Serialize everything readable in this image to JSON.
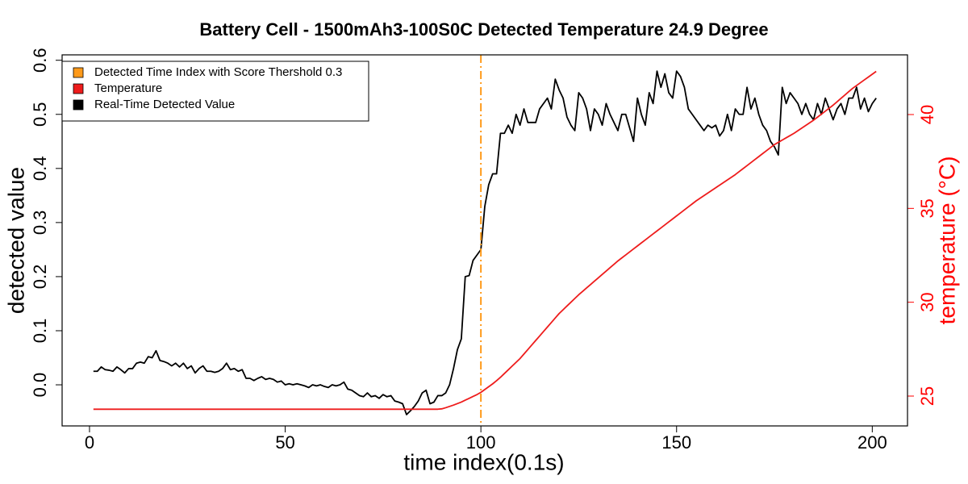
{
  "chart_data": {
    "type": "line",
    "title": "Battery Cell - 1500mAh3-100S0C Detected Temperature 24.9 Degree",
    "x_label": "time index(0.1s)",
    "y_label": "detected value",
    "y2_label": "temperature (°C)",
    "xlim": [
      -7,
      209
    ],
    "xticks": [
      0,
      50,
      100,
      150,
      200
    ],
    "ylim": [
      -0.076,
      0.61
    ],
    "yticks": [
      {
        "value": 0,
        "label": "0.0"
      },
      0.1,
      0.2,
      0.3,
      0.4,
      0.5,
      0.6
    ],
    "y2lim": [
      23.41,
      43.18
    ],
    "y2ticks": [
      25,
      30,
      35,
      40
    ],
    "y2_color": "#ff0000",
    "vline": {
      "name": "Detected Time Index with Score Thershold 0.3",
      "x": 100,
      "color": "#ff9a1a"
    },
    "legend": "top-left",
    "x": [
      1,
      2,
      3,
      4,
      5,
      6,
      7,
      8,
      9,
      10,
      11,
      12,
      13,
      14,
      15,
      16,
      17,
      18,
      19,
      20,
      21,
      22,
      23,
      24,
      25,
      26,
      27,
      28,
      29,
      30,
      31,
      32,
      33,
      34,
      35,
      36,
      37,
      38,
      39,
      40,
      41,
      42,
      43,
      44,
      45,
      46,
      47,
      48,
      49,
      50,
      51,
      52,
      53,
      54,
      55,
      56,
      57,
      58,
      59,
      60,
      61,
      62,
      63,
      64,
      65,
      66,
      67,
      68,
      69,
      70,
      71,
      72,
      73,
      74,
      75,
      76,
      77,
      78,
      79,
      80,
      81,
      82,
      83,
      84,
      85,
      86,
      87,
      88,
      89,
      90,
      91,
      92,
      93,
      94,
      95,
      96,
      97,
      98,
      99,
      100,
      101,
      102,
      103,
      104,
      105,
      106,
      107,
      108,
      109,
      110,
      111,
      112,
      113,
      114,
      115,
      116,
      117,
      118,
      119,
      120,
      121,
      122,
      123,
      124,
      125,
      126,
      127,
      128,
      129,
      130,
      131,
      132,
      133,
      134,
      135,
      136,
      137,
      138,
      139,
      140,
      141,
      142,
      143,
      144,
      145,
      146,
      147,
      148,
      149,
      150,
      151,
      152,
      153,
      154,
      155,
      156,
      157,
      158,
      159,
      160,
      161,
      162,
      163,
      164,
      165,
      166,
      167,
      168,
      169,
      170,
      171,
      172,
      173,
      174,
      175,
      176,
      177,
      178,
      179,
      180,
      181,
      182,
      183,
      184,
      185,
      186,
      187,
      188,
      189,
      190,
      191,
      192,
      193,
      194,
      195,
      196,
      197,
      198,
      199,
      200,
      201
    ],
    "series": [
      {
        "name": "Temperature",
        "color": "#ee1c1c",
        "axis": "y2",
        "values": [
          24.3,
          24.3,
          24.3,
          24.3,
          24.3,
          24.3,
          24.3,
          24.3,
          24.3,
          24.3,
          24.3,
          24.3,
          24.3,
          24.3,
          24.3,
          24.3,
          24.3,
          24.3,
          24.3,
          24.3,
          24.3,
          24.3,
          24.3,
          24.3,
          24.3,
          24.3,
          24.3,
          24.3,
          24.3,
          24.3,
          24.3,
          24.3,
          24.3,
          24.3,
          24.3,
          24.3,
          24.3,
          24.3,
          24.3,
          24.3,
          24.3,
          24.3,
          24.3,
          24.3,
          24.3,
          24.3,
          24.3,
          24.3,
          24.3,
          24.3,
          24.3,
          24.3,
          24.3,
          24.3,
          24.3,
          24.3,
          24.3,
          24.3,
          24.3,
          24.3,
          24.3,
          24.3,
          24.3,
          24.3,
          24.3,
          24.3,
          24.3,
          24.3,
          24.3,
          24.3,
          24.3,
          24.3,
          24.3,
          24.3,
          24.3,
          24.3,
          24.3,
          24.3,
          24.3,
          24.3,
          24.3,
          24.3,
          24.3,
          24.3,
          24.3,
          24.3,
          24.3,
          24.3,
          24.3,
          24.32,
          24.38,
          24.45,
          24.52,
          24.6,
          24.68,
          24.78,
          24.88,
          24.98,
          25.08,
          25.2,
          25.35,
          25.5,
          25.65,
          25.82,
          26.0,
          26.2,
          26.4,
          26.6,
          26.8,
          27.0,
          27.24,
          27.48,
          27.72,
          27.96,
          28.2,
          28.44,
          28.68,
          28.92,
          29.16,
          29.4,
          29.6,
          29.8,
          30.0,
          30.2,
          30.4,
          30.58,
          30.76,
          30.94,
          31.12,
          31.3,
          31.48,
          31.66,
          31.84,
          32.02,
          32.2,
          32.36,
          32.52,
          32.68,
          32.84,
          33.0,
          33.16,
          33.32,
          33.48,
          33.64,
          33.8,
          33.96,
          34.12,
          34.28,
          34.44,
          34.6,
          34.76,
          34.92,
          35.08,
          35.24,
          35.4,
          35.54,
          35.68,
          35.82,
          35.96,
          36.1,
          36.24,
          36.38,
          36.52,
          36.66,
          36.8,
          36.96,
          37.12,
          37.28,
          37.44,
          37.6,
          37.76,
          37.92,
          38.08,
          38.24,
          38.4,
          38.52,
          38.64,
          38.76,
          38.88,
          39.0,
          39.14,
          39.28,
          39.42,
          39.56,
          39.7,
          39.86,
          40.02,
          40.18,
          40.34,
          40.5,
          40.68,
          40.86,
          41.04,
          41.22,
          41.4,
          41.55,
          41.7,
          41.85,
          42.0,
          42.15,
          42.3
        ]
      },
      {
        "name": "Real-Time Detected Value",
        "color": "#000000",
        "values": [
          0.025,
          0.025,
          0.033,
          0.028,
          0.027,
          0.025,
          0.033,
          0.028,
          0.022,
          0.03,
          0.03,
          0.04,
          0.042,
          0.04,
          0.052,
          0.05,
          0.063,
          0.045,
          0.043,
          0.04,
          0.035,
          0.04,
          0.033,
          0.04,
          0.03,
          0.035,
          0.022,
          0.03,
          0.035,
          0.025,
          0.025,
          0.023,
          0.025,
          0.03,
          0.04,
          0.028,
          0.03,
          0.025,
          0.028,
          0.012,
          0.012,
          0.008,
          0.012,
          0.015,
          0.01,
          0.012,
          0.01,
          0.005,
          0.007,
          0.0,
          0.002,
          0.0,
          0.002,
          0.0,
          -0.002,
          -0.005,
          0.0,
          -0.002,
          0.0,
          -0.003,
          -0.005,
          0.0,
          -0.002,
          0.0,
          0.005,
          -0.008,
          -0.01,
          -0.015,
          -0.02,
          -0.022,
          -0.015,
          -0.022,
          -0.02,
          -0.025,
          -0.018,
          -0.022,
          -0.02,
          -0.03,
          -0.032,
          -0.035,
          -0.055,
          -0.048,
          -0.04,
          -0.03,
          -0.015,
          -0.01,
          -0.035,
          -0.032,
          -0.02,
          -0.02,
          -0.015,
          0.0,
          0.03,
          0.065,
          0.085,
          0.2,
          0.202,
          0.23,
          0.24,
          0.25,
          0.33,
          0.37,
          0.39,
          0.39,
          0.465,
          0.465,
          0.48,
          0.465,
          0.5,
          0.48,
          0.51,
          0.485,
          0.485,
          0.485,
          0.51,
          0.52,
          0.53,
          0.51,
          0.565,
          0.545,
          0.53,
          0.495,
          0.48,
          0.47,
          0.54,
          0.53,
          0.51,
          0.47,
          0.51,
          0.5,
          0.48,
          0.52,
          0.5,
          0.485,
          0.47,
          0.5,
          0.5,
          0.475,
          0.45,
          0.53,
          0.5,
          0.48,
          0.54,
          0.52,
          0.58,
          0.55,
          0.575,
          0.54,
          0.53,
          0.58,
          0.57,
          0.55,
          0.51,
          0.5,
          0.49,
          0.48,
          0.47,
          0.48,
          0.475,
          0.48,
          0.46,
          0.47,
          0.5,
          0.47,
          0.51,
          0.5,
          0.5,
          0.55,
          0.51,
          0.53,
          0.5,
          0.48,
          0.47,
          0.45,
          0.44,
          0.425,
          0.55,
          0.52,
          0.54,
          0.53,
          0.52,
          0.5,
          0.52,
          0.5,
          0.49,
          0.52,
          0.5,
          0.53,
          0.51,
          0.49,
          0.51,
          0.52,
          0.5,
          0.53,
          0.53,
          0.55,
          0.51,
          0.53,
          0.505,
          0.52,
          0.53
        ]
      }
    ]
  }
}
